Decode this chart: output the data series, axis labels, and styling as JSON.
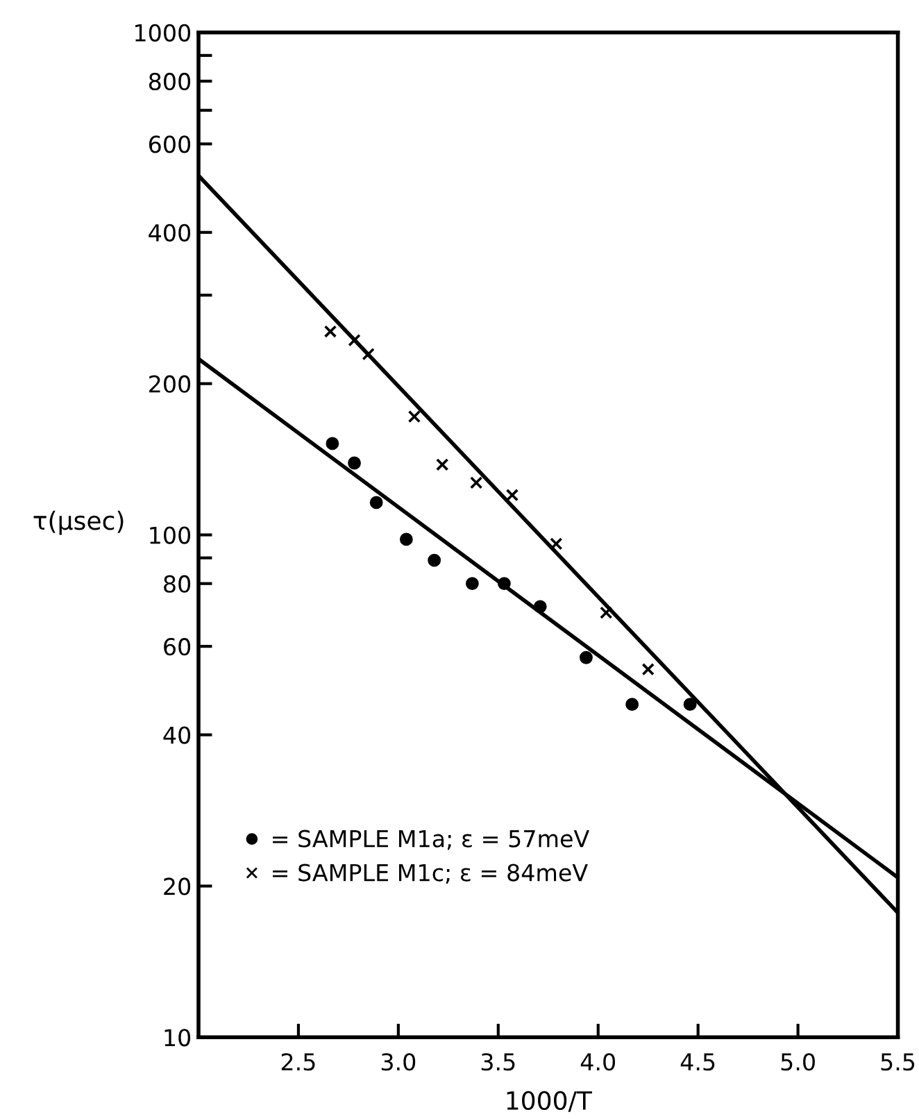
{
  "chart_data": {
    "type": "scatter",
    "xlabel": "1000/T",
    "ylabel": "τ(μsec)",
    "log": "y",
    "xlim": [
      2.0,
      5.5
    ],
    "xticks": [
      2.5,
      {
        "value": 3,
        "label": "3.0"
      },
      3.5,
      {
        "value": 4,
        "label": "4.0"
      },
      4.5,
      {
        "value": 5,
        "label": "5.0"
      },
      5.5
    ],
    "ylim": [
      10,
      1000
    ],
    "yticks": [
      10,
      20,
      40,
      60,
      80,
      100,
      200,
      400,
      600,
      800,
      1000,
      {
        "value": 90,
        "label": null
      },
      {
        "value": 300,
        "label": null
      },
      {
        "value": 700,
        "label": null
      },
      {
        "value": 900,
        "label": null
      }
    ],
    "grid": false,
    "legend": "bottom left",
    "series": [
      {
        "name": "= SAMPLE M1a; ε = 57meV",
        "marker": "circle",
        "color": "#000000",
        "x": [
          2.67,
          2.78,
          2.89,
          3.04,
          3.18,
          3.37,
          3.53,
          3.71,
          3.94,
          4.17,
          4.46
        ],
        "values": [
          152,
          139,
          116,
          98,
          89,
          80,
          80,
          72,
          57,
          46,
          46
        ]
      },
      {
        "name": "= SAMPLE M1c; ε = 84meV",
        "marker": "cross",
        "color": "#000000",
        "x": [
          2.66,
          2.78,
          2.85,
          3.08,
          3.22,
          3.39,
          3.57,
          3.79,
          4.04,
          4.25
        ],
        "values": [
          254,
          244,
          229,
          172,
          138,
          127,
          120,
          96,
          70,
          54
        ]
      },
      {
        "type": "line",
        "marker": "none",
        "line_style": "solid",
        "color": "#000000",
        "x": [
          2.0,
          5.5
        ],
        "values": [
          224,
          20.8
        ]
      },
      {
        "type": "line",
        "marker": "none",
        "line_style": "solid",
        "color": "#000000",
        "x": [
          2.0,
          5.5
        ],
        "values": [
          519,
          17.7
        ]
      }
    ]
  }
}
